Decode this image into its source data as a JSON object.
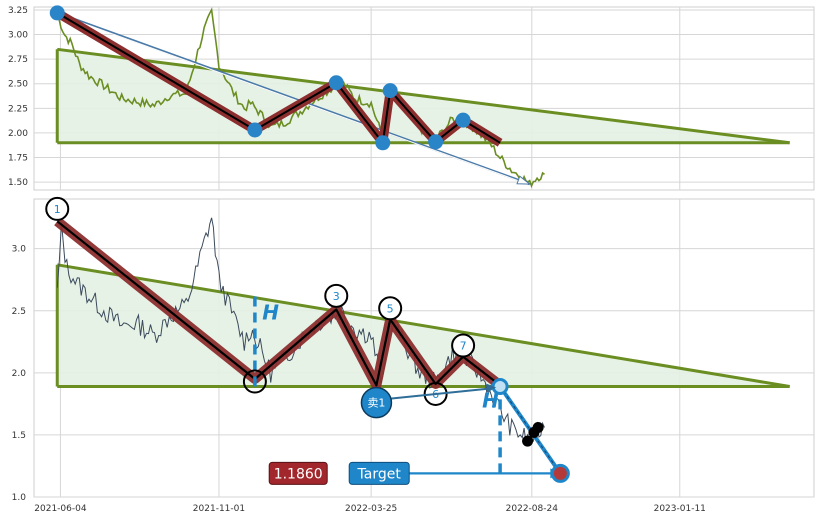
{
  "chart_data": [
    {
      "type": "line",
      "name_hint": "top-overview",
      "y_ticks": [
        "3.25",
        "3.00",
        "2.75",
        "2.50",
        "2.25",
        "2.00",
        "1.75",
        "1.50"
      ],
      "ylim": [
        1.42,
        3.28
      ],
      "xlim": [
        "2021-05-10",
        "2023-05-18"
      ],
      "grid": true,
      "price_series": [
        [
          "2021-06-01",
          3.2
        ],
        [
          "2021-06-08",
          3.0
        ],
        [
          "2021-06-15",
          2.9
        ],
        [
          "2021-06-22",
          2.7
        ],
        [
          "2021-07-01",
          2.58
        ],
        [
          "2021-07-15",
          2.48
        ],
        [
          "2021-08-01",
          2.35
        ],
        [
          "2021-08-15",
          2.32
        ],
        [
          "2021-09-01",
          2.28
        ],
        [
          "2021-09-15",
          2.38
        ],
        [
          "2021-10-01",
          2.4
        ],
        [
          "2021-10-10",
          2.75
        ],
        [
          "2021-10-18",
          3.05
        ],
        [
          "2021-10-25",
          3.22
        ],
        [
          "2021-11-01",
          2.7
        ],
        [
          "2021-11-15",
          2.4
        ],
        [
          "2021-11-25",
          2.25
        ],
        [
          "2021-12-01",
          2.3
        ],
        [
          "2021-12-10",
          2.2
        ],
        [
          "2021-12-20",
          2.06
        ],
        [
          "2022-01-01",
          2.1
        ],
        [
          "2022-01-15",
          2.2
        ],
        [
          "2022-02-01",
          2.35
        ],
        [
          "2022-02-15",
          2.45
        ],
        [
          "2022-02-25",
          2.52
        ],
        [
          "2022-03-10",
          2.35
        ],
        [
          "2022-03-25",
          2.3
        ],
        [
          "2022-04-05",
          1.95
        ],
        [
          "2022-04-12",
          2.42
        ],
        [
          "2022-04-25",
          2.25
        ],
        [
          "2022-05-10",
          2.05
        ],
        [
          "2022-05-25",
          1.93
        ],
        [
          "2022-06-10",
          2.14
        ],
        [
          "2022-06-25",
          2.1
        ],
        [
          "2022-07-05",
          2.0
        ],
        [
          "2022-07-15",
          1.9
        ],
        [
          "2022-07-25",
          1.75
        ],
        [
          "2022-08-05",
          1.62
        ],
        [
          "2022-08-15",
          1.55
        ],
        [
          "2022-08-22",
          1.48
        ],
        [
          "2022-08-29",
          1.55
        ],
        [
          "2022-09-05",
          1.58
        ]
      ],
      "zigzag": [
        [
          "2021-06-01",
          3.22
        ],
        [
          "2021-12-05",
          2.03
        ],
        [
          "2022-02-20",
          2.51
        ],
        [
          "2022-04-05",
          1.9
        ],
        [
          "2022-04-12",
          2.43
        ],
        [
          "2022-05-25",
          1.91
        ],
        [
          "2022-06-20",
          2.13
        ],
        [
          "2022-07-25",
          1.9
        ]
      ],
      "markers": [
        [
          "2021-06-01",
          3.22
        ],
        [
          "2021-12-05",
          2.03
        ],
        [
          "2022-02-20",
          2.51
        ],
        [
          "2022-04-05",
          1.9
        ],
        [
          "2022-04-12",
          2.43
        ],
        [
          "2022-05-25",
          1.91
        ],
        [
          "2022-06-20",
          2.13
        ]
      ],
      "triangle": {
        "start": [
          "2021-06-01",
          2.85
        ],
        "end": [
          "2023-04-25",
          1.9
        ],
        "base": 1.9
      },
      "trend_arrow": {
        "from": [
          "2021-06-01",
          3.22
        ],
        "to": [
          "2022-08-22",
          1.48
        ]
      },
      "colors": {
        "price": "#6b8e23",
        "triangle_edge": "#6b8e23",
        "triangle_fill": "#e4f1e4",
        "zigzag": "#a83a3a",
        "markers": "#2a85c8"
      }
    },
    {
      "type": "line",
      "name_hint": "bottom-pattern",
      "x_ticks": [
        [
          "2021-06-04",
          "2021-06-04"
        ],
        [
          "2021-11-01",
          "2021-11-01"
        ],
        [
          "2022-03-25",
          "2022-03-25"
        ],
        [
          "2022-08-24",
          "2022-08-24"
        ],
        [
          "2023-01-11",
          "2023-01-11"
        ]
      ],
      "y_ticks": [
        "3.0",
        "2.5",
        "2.0",
        "1.5",
        "1.0"
      ],
      "ylim": [
        1.0,
        3.4
      ],
      "xlim": [
        "2021-05-10",
        "2023-05-18"
      ],
      "grid": true,
      "price_series": [
        [
          "2021-06-01",
          2.65
        ],
        [
          "2021-06-05",
          3.15
        ],
        [
          "2021-06-10",
          2.85
        ],
        [
          "2021-06-20",
          2.72
        ],
        [
          "2021-07-01",
          2.62
        ],
        [
          "2021-07-15",
          2.5
        ],
        [
          "2021-08-01",
          2.38
        ],
        [
          "2021-08-15",
          2.4
        ],
        [
          "2021-09-01",
          2.3
        ],
        [
          "2021-09-15",
          2.45
        ],
        [
          "2021-10-01",
          2.55
        ],
        [
          "2021-10-10",
          2.8
        ],
        [
          "2021-10-18",
          3.05
        ],
        [
          "2021-10-25",
          3.25
        ],
        [
          "2021-11-01",
          2.75
        ],
        [
          "2021-11-15",
          2.45
        ],
        [
          "2021-11-25",
          2.25
        ],
        [
          "2021-12-01",
          2.35
        ],
        [
          "2021-12-10",
          2.2
        ],
        [
          "2021-12-20",
          2.0
        ],
        [
          "2022-01-01",
          2.1
        ],
        [
          "2022-01-15",
          2.25
        ],
        [
          "2022-02-01",
          2.4
        ],
        [
          "2022-02-15",
          2.45
        ],
        [
          "2022-02-25",
          2.5
        ],
        [
          "2022-03-10",
          2.35
        ],
        [
          "2022-03-25",
          2.3
        ],
        [
          "2022-04-05",
          1.9
        ],
        [
          "2022-04-12",
          2.43
        ],
        [
          "2022-04-25",
          2.25
        ],
        [
          "2022-05-10",
          2.0
        ],
        [
          "2022-05-25",
          1.92
        ],
        [
          "2022-06-10",
          2.15
        ],
        [
          "2022-06-25",
          2.1
        ],
        [
          "2022-07-05",
          2.0
        ],
        [
          "2022-07-15",
          1.85
        ],
        [
          "2022-07-25",
          1.7
        ],
        [
          "2022-08-05",
          1.55
        ],
        [
          "2022-08-15",
          1.5
        ],
        [
          "2022-08-22",
          1.45
        ],
        [
          "2022-08-29",
          1.52
        ],
        [
          "2022-09-05",
          1.56
        ]
      ],
      "zigzag": [
        [
          "2021-06-01",
          3.22
        ],
        [
          "2021-12-05",
          1.95
        ],
        [
          "2022-02-20",
          2.51
        ],
        [
          "2022-03-30",
          1.9
        ],
        [
          "2022-04-12",
          2.43
        ],
        [
          "2022-05-25",
          1.91
        ],
        [
          "2022-06-20",
          2.13
        ],
        [
          "2022-07-25",
          1.9
        ]
      ],
      "point_labels": [
        {
          "label": "1",
          "at": [
            "2021-06-01",
            3.32
          ]
        },
        {
          "label": "3",
          "at": [
            "2022-02-20",
            2.62
          ]
        },
        {
          "label": "5",
          "at": [
            "2022-04-12",
            2.52
          ]
        },
        {
          "label": "7",
          "at": [
            "2022-06-20",
            2.22
          ]
        }
      ],
      "point_labels_empty": [
        {
          "at": [
            "2021-12-05",
            1.93
          ]
        },
        {
          "at": [
            "2022-05-25",
            1.83
          ]
        }
      ],
      "label_6": {
        "label": "6",
        "at": [
          "2022-05-25",
          1.83
        ]
      },
      "sell_marker": {
        "label": "卖1",
        "at": [
          "2022-03-30",
          1.76
        ]
      },
      "triangle": {
        "start": [
          "2021-06-01",
          2.87
        ],
        "end": [
          "2023-04-25",
          1.89
        ],
        "base": 1.89
      },
      "height_marks": [
        {
          "label": "H",
          "x": "2021-12-05",
          "y_from": 1.89,
          "y_to": 2.62,
          "text_at": [
            "2021-12-12",
            2.43
          ]
        },
        {
          "label": "H",
          "x": "2022-07-25",
          "y_from": 1.19,
          "y_to": 1.89,
          "text_at": [
            "2022-07-08",
            1.72
          ]
        }
      ],
      "target_line": {
        "y": 1.19,
        "from": "2022-04-30",
        "to": "2022-09-20"
      },
      "projection": {
        "from": [
          "2022-07-25",
          1.89
        ],
        "to": [
          "2022-09-20",
          1.19
        ]
      },
      "target_value_label": "1.1860",
      "target_label": "Target",
      "colors": {
        "price": "#3b4a5c",
        "triangle_edge": "#6b8e23",
        "triangle_fill": "#e4f1e4",
        "zigzag": "#a83a3a",
        "accent": "#1f87c9",
        "value_box": "#a2272c"
      }
    }
  ]
}
